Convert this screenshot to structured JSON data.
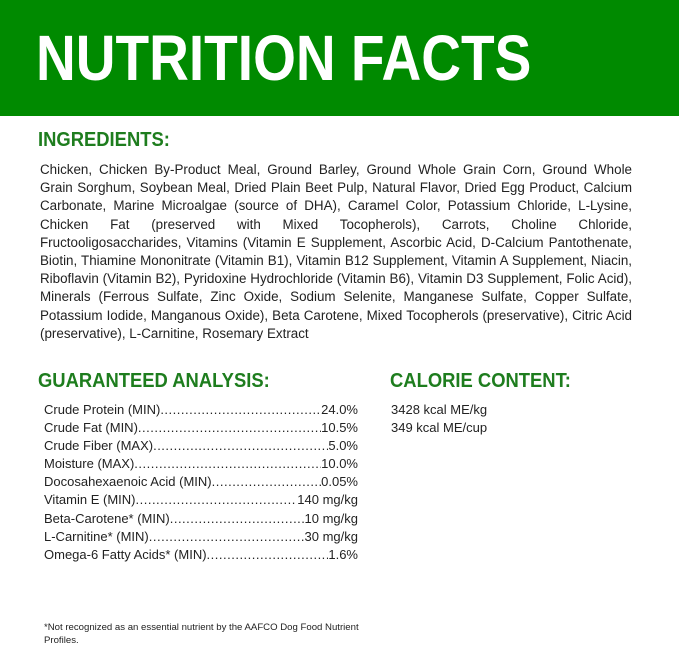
{
  "colors": {
    "banner": "#008a00",
    "heading": "#1e7d1e"
  },
  "title": "NUTRITION FACTS",
  "ingredients": {
    "heading": "INGREDIENTS:",
    "text": "Chicken, Chicken By-Product Meal, Ground Barley, Ground Whole Grain Corn, Ground Whole Grain Sorghum, Soybean Meal, Dried Plain Beet Pulp, Natural Flavor, Dried Egg Product, Calcium Carbonate, Marine Microalgae (source of DHA), Caramel Color, Potassium Chloride, L-Lysine, Chicken Fat (preserved with Mixed Tocopherols), Carrots, Choline Chloride, Fructooligosaccharides, Vitamins (Vitamin E Supplement, Ascorbic Acid, D-Calcium Pantothenate, Biotin, Thiamine Mononitrate (Vitamin B1), Vitamin B12 Supplement, Vitamin A Supplement, Niacin, Riboflavin (Vitamin B2), Pyridoxine Hydrochloride (Vitamin B6), Vitamin D3 Supplement, Folic Acid), Minerals (Ferrous Sulfate, Zinc Oxide, Sodium Selenite, Manganese Sulfate, Copper Sulfate, Potassium Iodide, Manganous Oxide), Beta Carotene, Mixed Tocopherols (preservative), Citric Acid (preservative), L-Carnitine, Rosemary Extract"
  },
  "guaranteed_analysis": {
    "heading": "GUARANTEED ANALYSIS:",
    "rows": [
      {
        "label": "Crude Protein (MIN)",
        "value": "24.0%"
      },
      {
        "label": "Crude Fat (MIN)",
        "value": "10.5%"
      },
      {
        "label": "Crude Fiber (MAX)",
        "value": "5.0%"
      },
      {
        "label": "Moisture (MAX)",
        "value": "10.0%"
      },
      {
        "label": "Docosahexaenoic Acid (MIN)",
        "value": "0.05%"
      },
      {
        "label": "Vitamin E (MIN)",
        "value": "140 mg/kg"
      },
      {
        "label": "Beta-Carotene* (MIN)",
        "value": "10 mg/kg"
      },
      {
        "label": "L-Carnitine* (MIN)",
        "value": "30 mg/kg"
      },
      {
        "label": "Omega-6 Fatty Acids* (MIN)",
        "value": "1.6%"
      }
    ]
  },
  "calorie_content": {
    "heading": "CALORIE CONTENT:",
    "lines": [
      "3428 kcal ME/kg",
      "349 kcal ME/cup"
    ]
  },
  "footnote": "*Not recognized as an essential nutrient by the AAFCO Dog Food Nutrient Profiles."
}
